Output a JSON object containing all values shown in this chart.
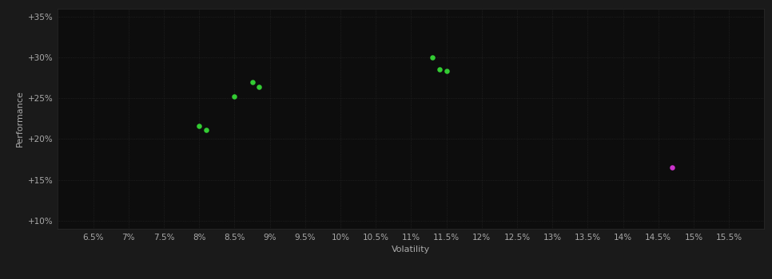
{
  "background_color": "#1a1a1a",
  "plot_bg_color": "#0d0d0d",
  "grid_color": "#2a2a2a",
  "text_color": "#aaaaaa",
  "xlabel": "Volatility",
  "ylabel": "Performance",
  "xlim": [
    0.06,
    0.16
  ],
  "ylim": [
    0.09,
    0.36
  ],
  "xticks": [
    0.065,
    0.07,
    0.075,
    0.08,
    0.085,
    0.09,
    0.095,
    0.1,
    0.105,
    0.11,
    0.115,
    0.12,
    0.125,
    0.13,
    0.135,
    0.14,
    0.145,
    0.15,
    0.155
  ],
  "xtick_labels": [
    "6.5%",
    "7%",
    "7.5%",
    "8%",
    "8.5%",
    "9%",
    "9.5%",
    "10%",
    "10.5%",
    "11%",
    "11.5%",
    "12%",
    "12.5%",
    "13%",
    "13.5%",
    "14%",
    "14.5%",
    "15%",
    "15.5%"
  ],
  "yticks": [
    0.1,
    0.15,
    0.2,
    0.25,
    0.3,
    0.35
  ],
  "ytick_labels": [
    "+10%",
    "+15%",
    "+20%",
    "+25%",
    "+30%",
    "+35%"
  ],
  "green_points": [
    [
      0.08,
      0.216
    ],
    [
      0.081,
      0.211
    ],
    [
      0.085,
      0.252
    ],
    [
      0.0875,
      0.27
    ],
    [
      0.0885,
      0.264
    ],
    [
      0.113,
      0.3
    ],
    [
      0.114,
      0.285
    ],
    [
      0.115,
      0.283
    ]
  ],
  "magenta_points": [
    [
      0.147,
      0.165
    ]
  ],
  "green_color": "#33cc33",
  "magenta_color": "#cc33cc",
  "marker_size": 22
}
